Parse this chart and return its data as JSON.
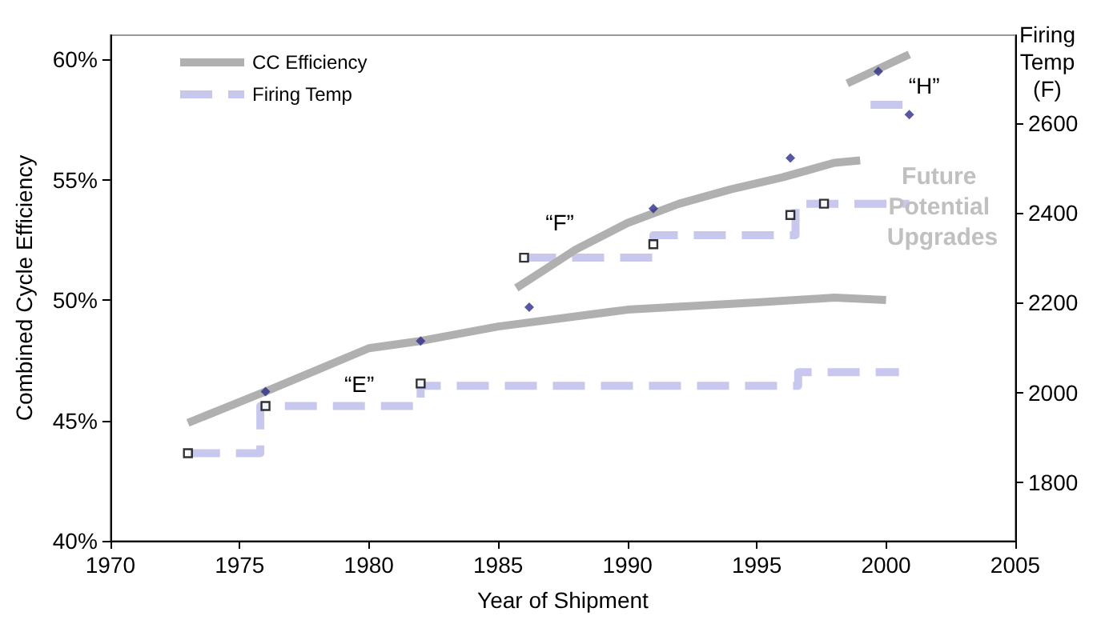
{
  "chart_data": {
    "type": "line",
    "xlabel": "Year of Shipment",
    "ylabel": "Combined Cycle Efficiency",
    "y2label": "Firing Temp (F)",
    "xlim": [
      1970,
      2005
    ],
    "xticks": [
      1970,
      1975,
      1980,
      1985,
      1990,
      1995,
      2000,
      2005
    ],
    "ylim": [
      40,
      61
    ],
    "yticks": [
      {
        "value": 40,
        "label": "40%"
      },
      {
        "value": 45,
        "label": "45%"
      },
      {
        "value": 50,
        "label": "50%"
      },
      {
        "value": 55,
        "label": "55%"
      },
      {
        "value": 60,
        "label": "60%"
      }
    ],
    "y2lim": [
      1670,
      2795
    ],
    "y2ticks": [
      1800,
      2000,
      2200,
      2400,
      2600
    ],
    "grid": false,
    "legend": "top left",
    "series": [
      {
        "name": "CC Efficiency",
        "color": "#b0b0b0",
        "line_style": "solid",
        "marker": "none",
        "x": [
          1973,
          1976,
          1978,
          1980,
          1982,
          1985,
          1990,
          1995,
          1998,
          2000
        ],
        "values": [
          44.9,
          46.2,
          47.1,
          48.0,
          48.3,
          48.9,
          49.6,
          49.9,
          50.1,
          50.0
        ]
      },
      {
        "color": "#b0b0b0",
        "line_style": "solid",
        "marker": "none",
        "x": [
          1985.7,
          1987,
          1988,
          1990,
          1992,
          1994,
          1996,
          1998,
          1999
        ],
        "values": [
          50.5,
          51.4,
          52.1,
          53.2,
          54.0,
          54.6,
          55.1,
          55.7,
          55.8
        ]
      },
      {
        "color": "#b0b0b0",
        "line_style": "solid",
        "marker": "none",
        "x": [
          1998.5,
          2000.9
        ],
        "values": [
          59.0,
          60.2
        ]
      },
      {
        "name": "Firing Temp",
        "type": "step",
        "axis": "y2",
        "color": "#c8c8ee",
        "line_style": "dashed",
        "marker": "none",
        "x": [
          1973,
          1975.8,
          1982,
          1996.6,
          2000.5
        ],
        "values": [
          1865,
          1970,
          2015,
          2045,
          2045
        ]
      },
      {
        "type": "step",
        "axis": "y2",
        "color": "#c8c8ee",
        "line_style": "dashed",
        "marker": "none",
        "x": [
          1986,
          1991,
          1996.5,
          2000.9
        ],
        "values": [
          2300,
          2350,
          2420,
          2420
        ]
      },
      {
        "type": "step",
        "axis": "y2",
        "color": "#c8c8ee",
        "line_style": "dashed",
        "marker": "none",
        "x": [
          1999.4,
          2001
        ],
        "values": [
          2640,
          2640
        ]
      },
      {
        "type": "scatter",
        "color": "#2e2e8a",
        "marker": "diamond",
        "x": [
          1976,
          1982,
          1986.2,
          1991,
          1996.3,
          1999.7,
          2000.9
        ],
        "values": [
          46.2,
          48.3,
          49.7,
          53.8,
          55.9,
          59.5,
          57.7
        ]
      },
      {
        "type": "scatter",
        "axis": "y2",
        "color": "#000000",
        "marker": "square",
        "x": [
          1973,
          1976,
          1982,
          1986,
          1991,
          1996.3,
          1997.6
        ],
        "values": [
          1865,
          1970,
          2020,
          2300,
          2330,
          2395,
          2420
        ]
      }
    ],
    "annotations": [
      "“E”",
      "“F”",
      "“H”",
      "Future Potential Upgrades"
    ]
  }
}
